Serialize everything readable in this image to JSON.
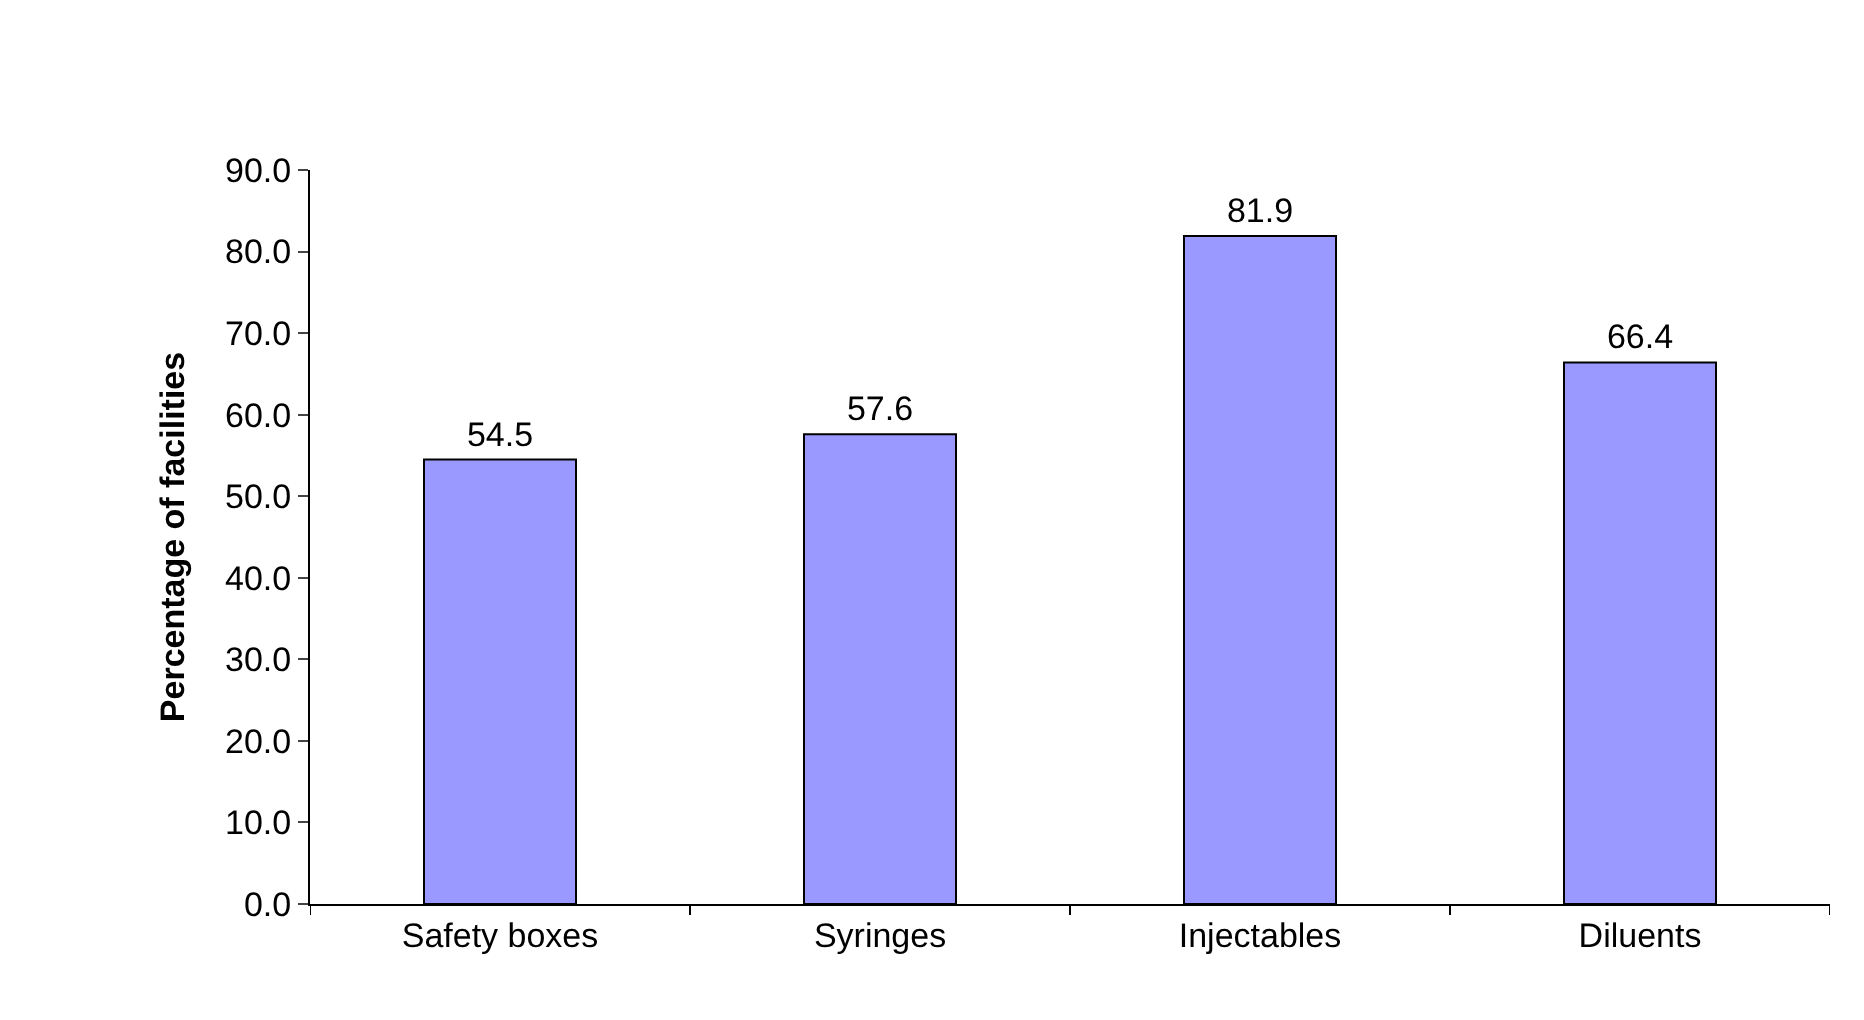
{
  "chart_data": {
    "type": "bar",
    "ylabel": "Percentage of facilities",
    "categories": [
      "Safety boxes",
      "Syringes",
      "Injectables",
      "Diluents"
    ],
    "values": [
      54.5,
      57.6,
      81.9,
      66.4
    ],
    "color": "#9999ff",
    "ylim": [
      0,
      90
    ],
    "yticks": [
      {
        "value": 0,
        "label": "0.0"
      },
      {
        "value": 10,
        "label": "10.0"
      },
      {
        "value": 20,
        "label": "20.0"
      },
      {
        "value": 30,
        "label": "30.0"
      },
      {
        "value": 40,
        "label": "40.0"
      },
      {
        "value": 50,
        "label": "50.0"
      },
      {
        "value": 60,
        "label": "60.0"
      },
      {
        "value": 70,
        "label": "70.0"
      },
      {
        "value": 80,
        "label": "80.0"
      },
      {
        "value": 90,
        "label": "90.0"
      }
    ],
    "data_labels": true
  }
}
